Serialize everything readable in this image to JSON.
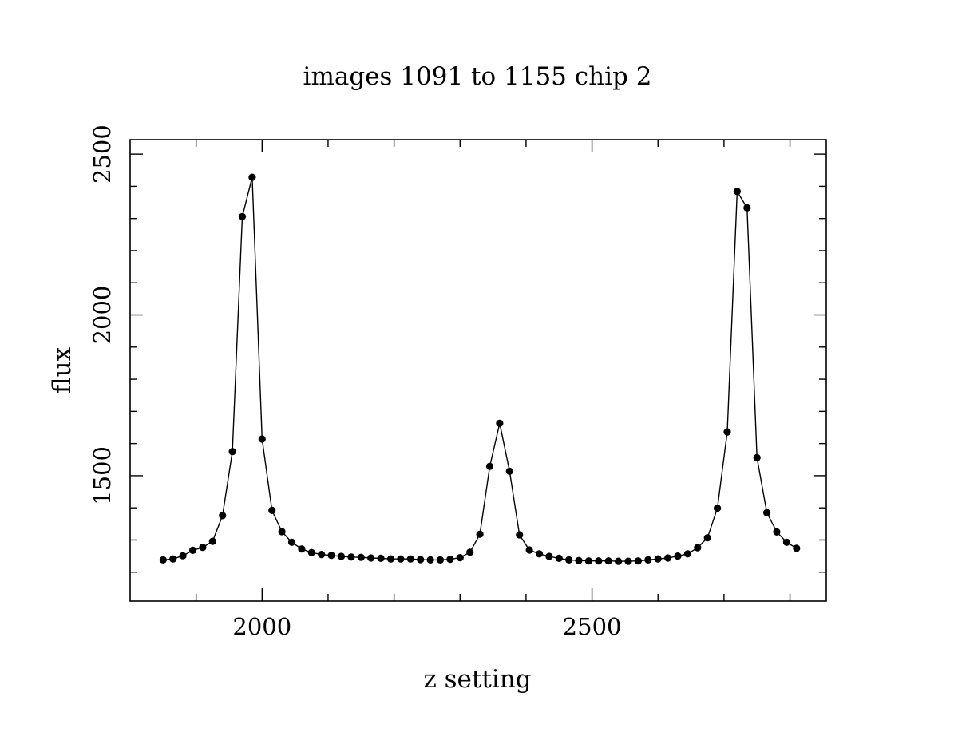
{
  "chart_data": {
    "type": "line",
    "title": "images 1091 to 1155 chip 2",
    "xlabel": "z setting",
    "ylabel": "flux",
    "xlim": [
      1800,
      2855
    ],
    "ylim": [
      1110,
      2545
    ],
    "x_major_ticks": [
      2000,
      2500
    ],
    "x_minor_ticks": [
      1900,
      2000,
      2100,
      2200,
      2300,
      2400,
      2500,
      2600,
      2700,
      2800
    ],
    "y_major_ticks": [
      1500,
      2000,
      2500
    ],
    "y_minor_ticks": [
      1200,
      1300,
      1400,
      1500,
      1600,
      1700,
      1800,
      1900,
      2000,
      2100,
      2200,
      2300,
      2400,
      2500
    ],
    "grid": false,
    "legend": "none",
    "marker": "filled-circle",
    "line_color": "#000000",
    "series": [
      {
        "x": [
          1850,
          1865,
          1880,
          1895,
          1910,
          1925,
          1940,
          1955,
          1970,
          1985,
          2000,
          2015,
          2030,
          2045,
          2060,
          2075,
          2090,
          2105,
          2120,
          2135,
          2150,
          2165,
          2180,
          2195,
          2210,
          2225,
          2240,
          2255,
          2270,
          2285,
          2300,
          2315,
          2330,
          2345,
          2360,
          2375,
          2390,
          2405,
          2420,
          2435,
          2450,
          2465,
          2480,
          2495,
          2510,
          2525,
          2540,
          2555,
          2570,
          2585,
          2600,
          2615,
          2630,
          2645,
          2660,
          2675,
          2690,
          2705,
          2720,
          2735,
          2750,
          2765,
          2780,
          2795,
          2810
        ],
        "y": [
          1238,
          1241,
          1251,
          1268,
          1277,
          1296,
          1376,
          1575,
          2306,
          2428,
          1614,
          1392,
          1326,
          1293,
          1272,
          1261,
          1255,
          1252,
          1249,
          1247,
          1246,
          1244,
          1243,
          1241,
          1241,
          1241,
          1239,
          1238,
          1238,
          1240,
          1245,
          1262,
          1318,
          1529,
          1663,
          1514,
          1316,
          1269,
          1257,
          1249,
          1243,
          1238,
          1236,
          1235,
          1235,
          1235,
          1234,
          1234,
          1235,
          1238,
          1241,
          1244,
          1250,
          1257,
          1276,
          1307,
          1399,
          1636,
          2384,
          2333,
          1556,
          1385,
          1325,
          1293,
          1274
        ]
      }
    ]
  }
}
